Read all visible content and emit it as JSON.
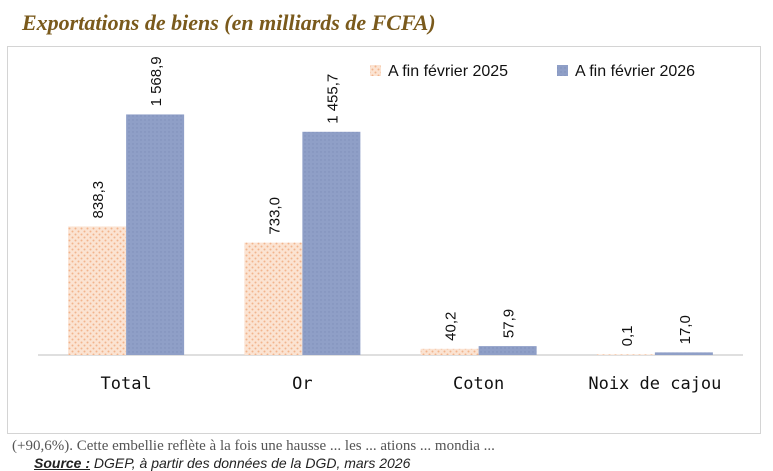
{
  "page": {
    "title": "Exportations de biens (en milliards de FCFA)",
    "source_label": "Source :",
    "source_text": " DGEP, à partir des données de la DGD, mars 2026",
    "footnote": "(+90,6%). Cette embellie reflète à la fois une hausse ... les ... ations ... mondia ..."
  },
  "colors": {
    "series_2025_fill": "#fbe3d2",
    "series_2025_dots": "#f2b48d",
    "series_2026_fill": "#8f9fc7",
    "series_2026_dots": "#7f8fb9",
    "axis": "#bfbfbf"
  },
  "chart_data": {
    "type": "bar",
    "title": "Exportations de biens (en milliards de FCFA)",
    "categories": [
      "Total",
      "Or",
      "Coton",
      "Noix de cajou"
    ],
    "series": [
      {
        "name": "A fin février 2025",
        "values": [
          838.3,
          733.0,
          40.2,
          0.1
        ],
        "labels": [
          "838,3",
          "733,0",
          "40,2",
          "0,1"
        ]
      },
      {
        "name": "A fin février 2026",
        "values": [
          1568.9,
          1455.7,
          57.9,
          17.0
        ],
        "labels": [
          "1 568,9",
          "1 455,7",
          "57,9",
          "17,0"
        ]
      }
    ],
    "ylim": [
      0,
      1800
    ],
    "xlabel": "",
    "ylabel": "",
    "grid": false,
    "legend_position": "top-right"
  }
}
